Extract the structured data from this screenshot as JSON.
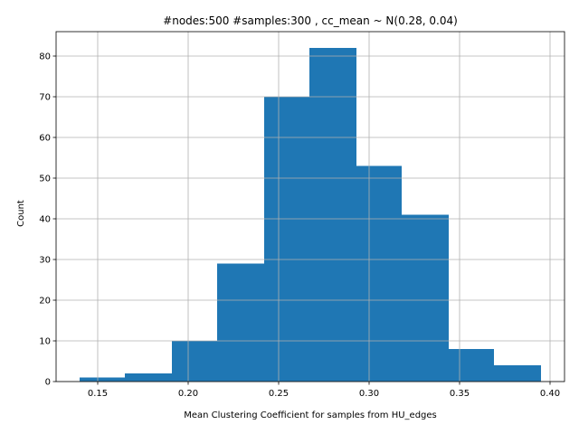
{
  "chart_data": {
    "type": "bar",
    "title": "#nodes:500 #samples:300 , cc_mean ~ N(0.28, 0.04)",
    "xlabel": "Mean Clustering Coefficient for samples from HU_edges",
    "ylabel": "Count",
    "xlim": [
      0.127,
      0.408
    ],
    "ylim": [
      0,
      86
    ],
    "grid": true,
    "bar_color": "#1f77b4",
    "bins": [
      {
        "x0": 0.14,
        "x1": 0.165,
        "value": 1
      },
      {
        "x0": 0.165,
        "x1": 0.191,
        "value": 2
      },
      {
        "x0": 0.191,
        "x1": 0.216,
        "value": 10
      },
      {
        "x0": 0.216,
        "x1": 0.242,
        "value": 29
      },
      {
        "x0": 0.242,
        "x1": 0.267,
        "value": 70
      },
      {
        "x0": 0.267,
        "x1": 0.293,
        "value": 82
      },
      {
        "x0": 0.293,
        "x1": 0.318,
        "value": 53
      },
      {
        "x0": 0.318,
        "x1": 0.344,
        "value": 41
      },
      {
        "x0": 0.344,
        "x1": 0.369,
        "value": 8
      },
      {
        "x0": 0.369,
        "x1": 0.395,
        "value": 4
      }
    ],
    "xticks": [
      {
        "value": 0.15,
        "label": "0.15"
      },
      {
        "value": 0.2,
        "label": "0.20"
      },
      {
        "value": 0.25,
        "label": "0.25"
      },
      {
        "value": 0.3,
        "label": "0.30"
      },
      {
        "value": 0.35,
        "label": "0.35"
      },
      {
        "value": 0.4,
        "label": "0.40"
      }
    ],
    "yticks": [
      {
        "value": 0,
        "label": "0"
      },
      {
        "value": 10,
        "label": "10"
      },
      {
        "value": 20,
        "label": "20"
      },
      {
        "value": 30,
        "label": "30"
      },
      {
        "value": 40,
        "label": "40"
      },
      {
        "value": 50,
        "label": "50"
      },
      {
        "value": 60,
        "label": "60"
      },
      {
        "value": 70,
        "label": "70"
      },
      {
        "value": 80,
        "label": "80"
      }
    ]
  }
}
